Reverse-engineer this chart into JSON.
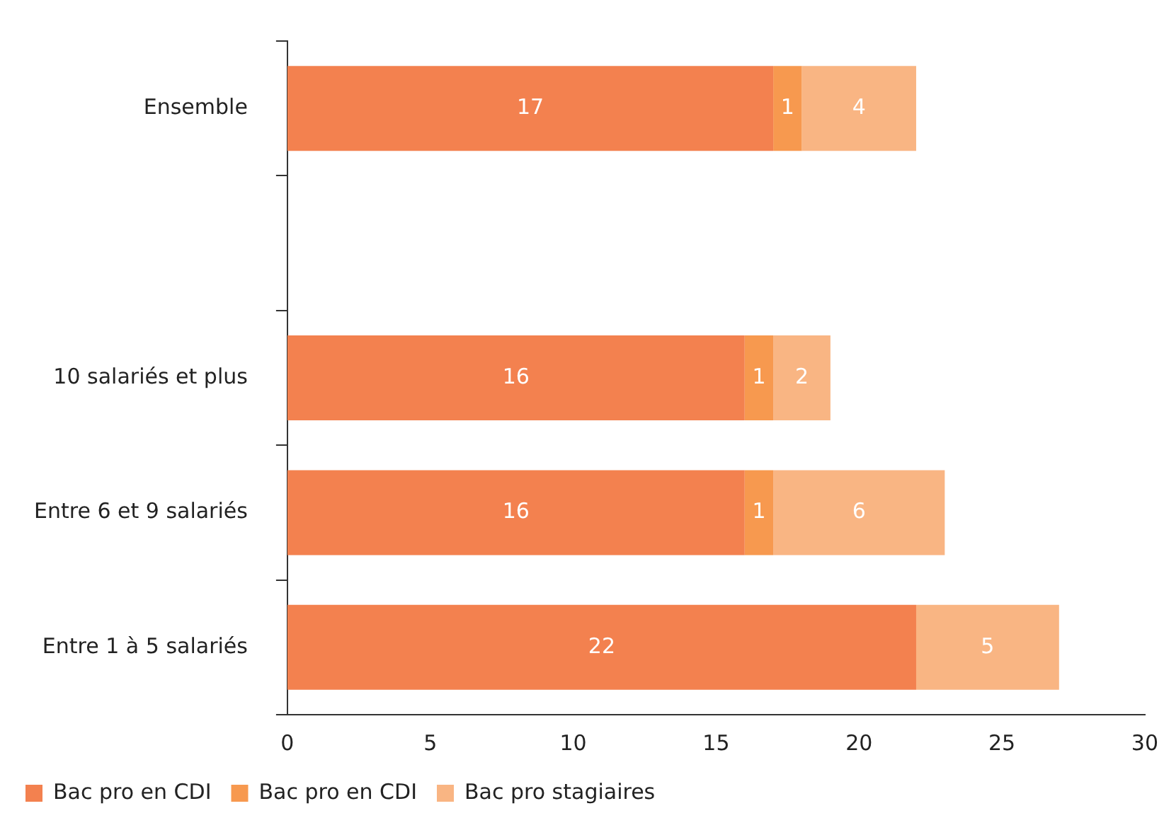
{
  "chart_data": {
    "type": "bar",
    "orientation": "horizontal",
    "stacked": true,
    "data_labels": true,
    "grid": false,
    "legend": "bottom",
    "categories": [
      "Ensemble",
      null,
      "10 salariés et plus",
      "Entre 6 et 9 salariés",
      "Entre 1 à 5 salariés"
    ],
    "series": [
      {
        "name": "Bac pro en CDI",
        "color": "#f3814f",
        "values": [
          17,
          null,
          16,
          16,
          22
        ]
      },
      {
        "name": "Bac pro en CDI",
        "color": "#f7994f",
        "values": [
          1,
          null,
          1,
          1,
          null
        ]
      },
      {
        "name": "Bac pro stagiaires",
        "color": "#f9b583",
        "values": [
          4,
          null,
          2,
          6,
          5
        ]
      }
    ],
    "xlim": [
      0,
      30
    ],
    "xticks": [
      0,
      5,
      10,
      15,
      20,
      25,
      30
    ]
  }
}
